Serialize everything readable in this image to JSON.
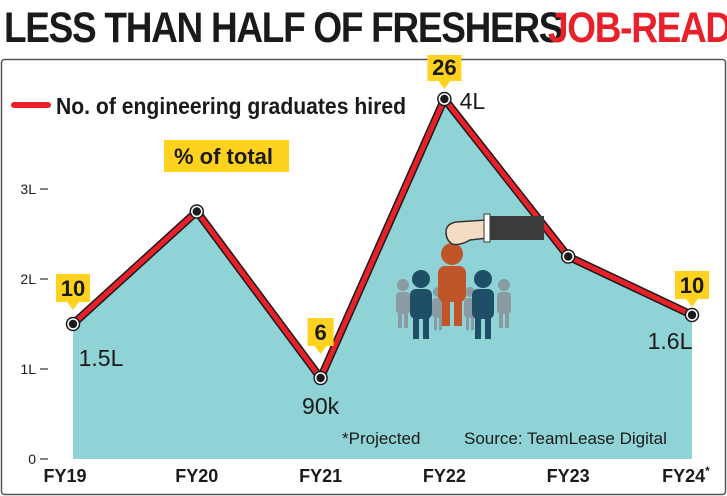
{
  "headline": {
    "main": "LESS THAN HALF OF FRESHERS",
    "accent": "JOB-READY"
  },
  "legend": {
    "series_label": "No. of engineering graduates hired",
    "badge_label": "% of total"
  },
  "footnotes": {
    "projected": "*Projected",
    "source": "Source: TeamLease Digital"
  },
  "colors": {
    "line": "#e8202a",
    "area": "#8fd3d6",
    "badge": "#ffd21f",
    "text": "#1a1a1a",
    "figure_blue": "#1f4f66",
    "figure_orange": "#c0552a",
    "figure_grey": "#8a9ba3"
  },
  "icons": [
    "hand-picking-candidate-icon"
  ],
  "chart_data": {
    "type": "area",
    "categories": [
      "FY19",
      "FY20",
      "FY21",
      "FY22",
      "FY23",
      "FY24*"
    ],
    "series": [
      {
        "name": "No. of engineering graduates hired",
        "values": [
          150000,
          275000,
          90000,
          400000,
          225000,
          160000
        ],
        "point_labels": [
          "1.5L",
          "",
          "90k",
          "4L",
          "",
          "1.6L"
        ],
        "percent_of_total": [
          "10",
          "",
          "6",
          "26",
          "",
          "10"
        ]
      }
    ],
    "yticks": [
      {
        "value": 0,
        "label": "0"
      },
      {
        "value": 100000,
        "label": "1L"
      },
      {
        "value": 200000,
        "label": "2L"
      },
      {
        "value": 300000,
        "label": "3L"
      }
    ],
    "ylim": [
      0,
      460000
    ],
    "grid": false,
    "legend": "top-left"
  }
}
